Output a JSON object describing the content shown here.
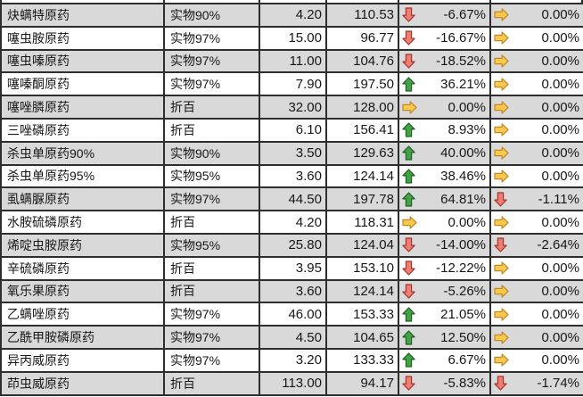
{
  "colors": {
    "row_shaded": "#d9d9d9",
    "row_plain": "#ffffff",
    "grid_border": "#2e2e2e",
    "text": "#171717",
    "arrow_up_fill": "#44a147",
    "arrow_up_stroke": "#1c641f",
    "arrow_down_fill": "#ee7e72",
    "arrow_down_stroke": "#a5352a",
    "arrow_flat_fill": "#fac84e",
    "arrow_flat_stroke": "#c08a24"
  },
  "table": {
    "rows": [
      {
        "name": "炔螨特原药",
        "spec": "实物90%",
        "price": "4.20",
        "index": "110.53",
        "chg1": {
          "dir": "down",
          "val": "-6.67%"
        },
        "chg2": {
          "dir": "flat",
          "val": "0.00%"
        }
      },
      {
        "name": "噻虫胺原药",
        "spec": "实物97%",
        "price": "15.00",
        "index": "96.77",
        "chg1": {
          "dir": "down",
          "val": "-16.67%"
        },
        "chg2": {
          "dir": "flat",
          "val": "0.00%"
        }
      },
      {
        "name": "噻虫嗪原药",
        "spec": "实物97%",
        "price": "11.00",
        "index": "104.76",
        "chg1": {
          "dir": "down",
          "val": "-18.52%"
        },
        "chg2": {
          "dir": "flat",
          "val": "0.00%"
        }
      },
      {
        "name": "噻嗪酮原药",
        "spec": "实物97%",
        "price": "7.90",
        "index": "197.50",
        "chg1": {
          "dir": "up",
          "val": "36.21%"
        },
        "chg2": {
          "dir": "flat",
          "val": "0.00%"
        }
      },
      {
        "name": "噻唑膦原药",
        "spec": "折百",
        "price": "32.00",
        "index": "128.00",
        "chg1": {
          "dir": "flat",
          "val": "0.00%"
        },
        "chg2": {
          "dir": "flat",
          "val": "0.00%"
        }
      },
      {
        "name": "三唑磷原药",
        "spec": "折百",
        "price": "6.10",
        "index": "156.41",
        "chg1": {
          "dir": "up",
          "val": "8.93%"
        },
        "chg2": {
          "dir": "flat",
          "val": "0.00%"
        }
      },
      {
        "name": "杀虫单原药90%",
        "spec": "实物90%",
        "price": "3.50",
        "index": "129.63",
        "chg1": {
          "dir": "up",
          "val": "40.00%"
        },
        "chg2": {
          "dir": "flat",
          "val": "0.00%"
        }
      },
      {
        "name": "杀虫单原药95%",
        "spec": "实物95%",
        "price": "3.60",
        "index": "124.14",
        "chg1": {
          "dir": "up",
          "val": "38.46%"
        },
        "chg2": {
          "dir": "flat",
          "val": "0.00%"
        }
      },
      {
        "name": "虱螨脲原药",
        "spec": "实物97%",
        "price": "44.50",
        "index": "197.78",
        "chg1": {
          "dir": "up",
          "val": "64.81%"
        },
        "chg2": {
          "dir": "down",
          "val": "-1.11%"
        }
      },
      {
        "name": "水胺硫磷原药",
        "spec": "折百",
        "price": "4.20",
        "index": "118.31",
        "chg1": {
          "dir": "flat",
          "val": "0.00%"
        },
        "chg2": {
          "dir": "flat",
          "val": "0.00%"
        }
      },
      {
        "name": "烯啶虫胺原药",
        "spec": "实物95%",
        "price": "25.80",
        "index": "124.04",
        "chg1": {
          "dir": "down",
          "val": "-14.00%"
        },
        "chg2": {
          "dir": "down",
          "val": "-2.64%"
        }
      },
      {
        "name": "辛硫磷原药",
        "spec": "折百",
        "price": "3.95",
        "index": "153.10",
        "chg1": {
          "dir": "down",
          "val": "-12.22%"
        },
        "chg2": {
          "dir": "flat",
          "val": "0.00%"
        }
      },
      {
        "name": "氧乐果原药",
        "spec": "折百",
        "price": "3.60",
        "index": "124.14",
        "chg1": {
          "dir": "down",
          "val": "-5.26%"
        },
        "chg2": {
          "dir": "flat",
          "val": "0.00%"
        }
      },
      {
        "name": "乙螨唑原药",
        "spec": "实物97%",
        "price": "46.00",
        "index": "153.33",
        "chg1": {
          "dir": "up",
          "val": "21.05%"
        },
        "chg2": {
          "dir": "flat",
          "val": "0.00%"
        }
      },
      {
        "name": "乙酰甲胺磷原药",
        "spec": "实物97%",
        "price": "4.50",
        "index": "104.65",
        "chg1": {
          "dir": "up",
          "val": "12.50%"
        },
        "chg2": {
          "dir": "flat",
          "val": "0.00%"
        }
      },
      {
        "name": "异丙威原药",
        "spec": "实物97%",
        "price": "3.20",
        "index": "133.33",
        "chg1": {
          "dir": "up",
          "val": "6.67%"
        },
        "chg2": {
          "dir": "flat",
          "val": "0.00%"
        }
      },
      {
        "name": "茚虫威原药",
        "spec": "折百",
        "price": "113.00",
        "index": "94.17",
        "chg1": {
          "dir": "down",
          "val": "-5.83%"
        },
        "chg2": {
          "dir": "down",
          "val": "-1.74%"
        }
      }
    ]
  }
}
